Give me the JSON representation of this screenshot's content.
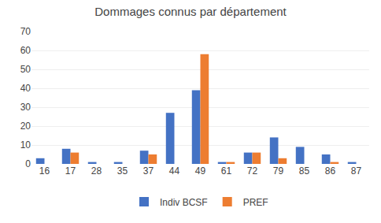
{
  "chart_data": {
    "type": "bar",
    "title": "Dommages connus par département",
    "categories": [
      "16",
      "17",
      "28",
      "35",
      "37",
      "44",
      "49",
      "61",
      "72",
      "79",
      "85",
      "86",
      "87"
    ],
    "series": [
      {
        "name": "Indiv BCSF",
        "color": "#4472C4",
        "values": [
          3,
          8,
          1,
          1,
          7,
          27,
          39,
          1,
          6,
          14,
          9,
          5,
          1
        ]
      },
      {
        "name": "PREF",
        "color": "#ED7D31",
        "values": [
          0,
          6,
          0,
          0,
          5,
          0,
          58,
          1,
          6,
          3,
          0,
          1,
          0
        ]
      }
    ],
    "ylim": [
      0,
      70
    ],
    "yticks": [
      0,
      10,
      20,
      30,
      40,
      50,
      60,
      70
    ],
    "grid": true,
    "legend": "bottom"
  }
}
